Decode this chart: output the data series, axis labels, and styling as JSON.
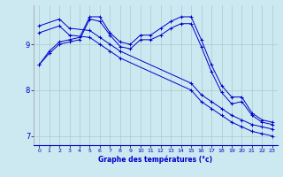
{
  "xlabel": "Graphe des températures (°c)",
  "bg_color": "#cce8f0",
  "line_color": "#0000cc",
  "grid_color": "#aacccc",
  "ylim": [
    6.8,
    9.85
  ],
  "xlim": [
    -0.5,
    23.5
  ],
  "yticks": [
    7,
    8,
    9
  ],
  "xticks": [
    0,
    1,
    2,
    3,
    4,
    5,
    6,
    7,
    8,
    9,
    10,
    11,
    12,
    13,
    14,
    15,
    16,
    17,
    18,
    19,
    20,
    21,
    22,
    23
  ],
  "series": [
    {
      "x": [
        0,
        1,
        2,
        3,
        4,
        5,
        6,
        7,
        8,
        9,
        10,
        11,
        12,
        13,
        14,
        15,
        16,
        17,
        18,
        19,
        20,
        21,
        22,
        23
      ],
      "y": [
        8.55,
        8.85,
        9.05,
        9.1,
        9.15,
        9.6,
        9.6,
        9.25,
        9.05,
        9.0,
        9.2,
        9.2,
        9.35,
        9.5,
        9.6,
        9.6,
        9.1,
        8.55,
        8.1,
        7.85,
        7.85,
        7.5,
        7.35,
        7.3
      ]
    },
    {
      "x": [
        0,
        2,
        3,
        5,
        6,
        7,
        8,
        15,
        16,
        17,
        18,
        19,
        20,
        21,
        22,
        23
      ],
      "y": [
        9.4,
        9.55,
        9.35,
        9.3,
        9.15,
        9.0,
        8.85,
        8.15,
        7.9,
        7.75,
        7.6,
        7.45,
        7.35,
        7.25,
        7.2,
        7.15
      ]
    },
    {
      "x": [
        0,
        2,
        3,
        5,
        6,
        7,
        8,
        15,
        16,
        17,
        18,
        19,
        20,
        21,
        22,
        23
      ],
      "y": [
        9.25,
        9.4,
        9.2,
        9.15,
        9.0,
        8.85,
        8.7,
        8.0,
        7.75,
        7.6,
        7.45,
        7.3,
        7.2,
        7.1,
        7.05,
        7.0
      ]
    },
    {
      "x": [
        0,
        1,
        2,
        3,
        4,
        5,
        6,
        7,
        8,
        9,
        10,
        11,
        12,
        13,
        14,
        15,
        16,
        17,
        18,
        19,
        20,
        21,
        22,
        23
      ],
      "y": [
        8.55,
        8.8,
        9.0,
        9.05,
        9.1,
        9.55,
        9.5,
        9.2,
        8.95,
        8.9,
        9.1,
        9.1,
        9.2,
        9.35,
        9.45,
        9.45,
        8.95,
        8.4,
        7.95,
        7.7,
        7.75,
        7.45,
        7.3,
        7.25
      ]
    }
  ]
}
